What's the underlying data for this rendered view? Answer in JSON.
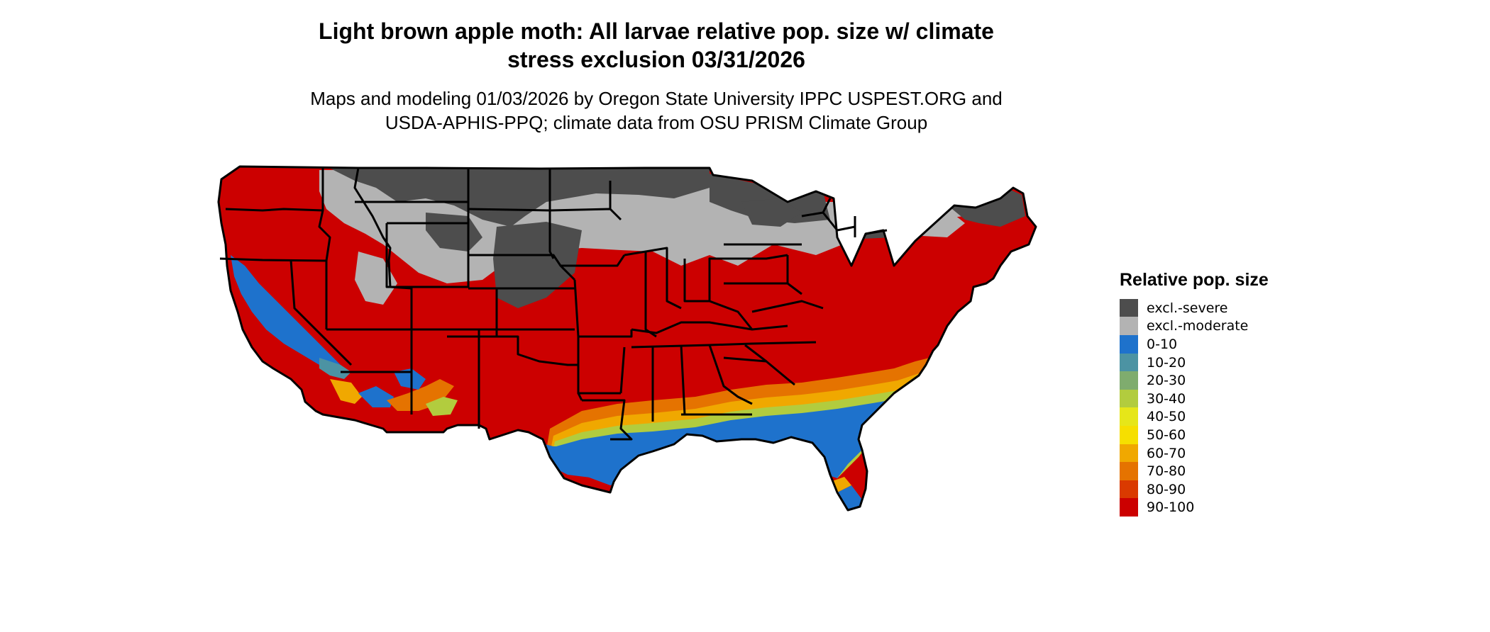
{
  "title_line1": "Light brown apple moth: All larvae relative pop. size w/ climate",
  "title_line2": "stress exclusion 03/31/2026",
  "subtitle_line1": "Maps and modeling 01/03/2026 by Oregon State University IPPC USPEST.ORG and",
  "subtitle_line2": "USDA-APHIS-PPQ; climate data from OSU PRISM Climate Group",
  "legend": {
    "title": "Relative pop. size",
    "items": [
      {
        "label": "excl.-severe",
        "color": "#4d4d4d"
      },
      {
        "label": "excl.-moderate",
        "color": "#b3b3b3"
      },
      {
        "label": "0-10",
        "color": "#1e72cc"
      },
      {
        "label": "10-20",
        "color": "#4c93a3"
      },
      {
        "label": "20-30",
        "color": "#7fac6e"
      },
      {
        "label": "30-40",
        "color": "#b2cc3e"
      },
      {
        "label": "40-50",
        "color": "#e6e619"
      },
      {
        "label": "50-60",
        "color": "#f6df00"
      },
      {
        "label": "60-70",
        "color": "#f0a800"
      },
      {
        "label": "70-80",
        "color": "#e57300"
      },
      {
        "label": "80-90",
        "color": "#da3a00"
      },
      {
        "label": "90-100",
        "color": "#cc0000"
      }
    ]
  },
  "map": {
    "region": "Contiguous United States",
    "state_border_color": "#000000"
  }
}
